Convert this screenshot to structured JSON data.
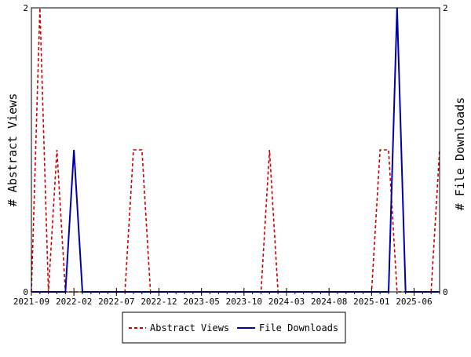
{
  "chart_data": {
    "type": "line",
    "title": "",
    "xlabel": "",
    "ylabel_left": "# Abstract Views",
    "ylabel_right": "# File Downloads",
    "ylim_left": [
      0,
      2
    ],
    "ylim_right": [
      0,
      2
    ],
    "y_ticks_left": [
      "0",
      "2"
    ],
    "y_ticks_right": [
      "0",
      "2"
    ],
    "x_range": [
      0,
      48
    ],
    "x_tick_labels": [
      {
        "x": 0,
        "label": "2021-09"
      },
      {
        "x": 5,
        "label": "2022-02"
      },
      {
        "x": 10,
        "label": "2022-07"
      },
      {
        "x": 15,
        "label": "2022-12"
      },
      {
        "x": 20,
        "label": "2023-05"
      },
      {
        "x": 25,
        "label": "2023-10"
      },
      {
        "x": 30,
        "label": "2024-03"
      },
      {
        "x": 35,
        "label": "2024-08"
      },
      {
        "x": 40,
        "label": "2025-01"
      },
      {
        "x": 45,
        "label": "2025-06"
      }
    ],
    "grid": false,
    "legend_position": "bottom",
    "series": [
      {
        "name": "Abstract Views",
        "color": "#cc0000",
        "style": "dashed",
        "axis": "left",
        "values": [
          0,
          2,
          0,
          1,
          0,
          0,
          0,
          0,
          0,
          0,
          0,
          0,
          1,
          1,
          0,
          0,
          0,
          0,
          0,
          0,
          0,
          0,
          0,
          0,
          0,
          0,
          0,
          0,
          1,
          0,
          0,
          0,
          0,
          0,
          0,
          0,
          0,
          0,
          0,
          0,
          0,
          1,
          1,
          0,
          0,
          0,
          0,
          0,
          1
        ]
      },
      {
        "name": "File Downloads",
        "color": "#0000aa",
        "style": "solid",
        "axis": "right",
        "values": [
          0,
          0,
          0,
          0,
          0,
          1,
          0,
          0,
          0,
          0,
          0,
          0,
          0,
          0,
          0,
          0,
          0,
          0,
          0,
          0,
          0,
          0,
          0,
          0,
          0,
          0,
          0,
          0,
          0,
          0,
          0,
          0,
          0,
          0,
          0,
          0,
          0,
          0,
          0,
          0,
          0,
          0,
          0,
          2,
          0,
          0,
          0,
          0,
          0
        ]
      }
    ]
  }
}
